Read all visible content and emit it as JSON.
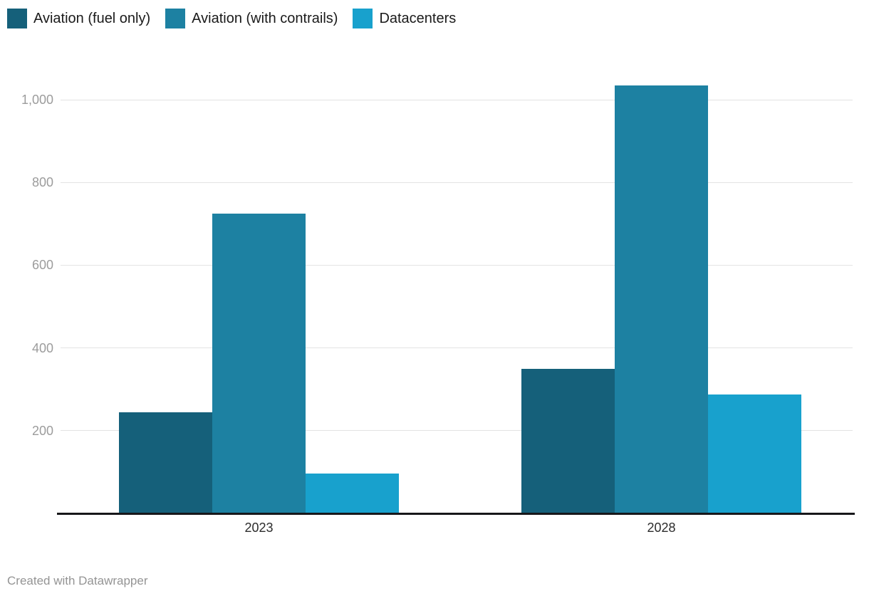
{
  "chart_data": {
    "type": "bar",
    "categories": [
      "2023",
      "2028"
    ],
    "series": [
      {
        "name": "Aviation (fuel only)",
        "color": "#15607a",
        "values": [
          245,
          350
        ]
      },
      {
        "name": "Aviation (with contrails)",
        "color": "#1d81a2",
        "values": [
          725,
          1035
        ]
      },
      {
        "name": "Datacenters",
        "color": "#18a1cd",
        "values": [
          97,
          287
        ]
      }
    ],
    "title": "",
    "xlabel": "",
    "ylabel": "",
    "ylim": [
      0,
      1070
    ],
    "yticks": [
      200,
      400,
      600,
      800,
      1000
    ],
    "ytick_labels": [
      "200",
      "400",
      "600",
      "800",
      "1,000"
    ],
    "grid": true,
    "legend_position": "top-left"
  },
  "colors": {
    "background": "#ffffff",
    "gridline": "#e3e3e3",
    "axis_line": "#17171a",
    "ytick_text": "#9c9c9c",
    "xtick_text": "#2c2c2c",
    "legend_text": "#1a1a1a",
    "footer_text": "#949494"
  },
  "footer": {
    "credit": "Created with Datawrapper"
  }
}
